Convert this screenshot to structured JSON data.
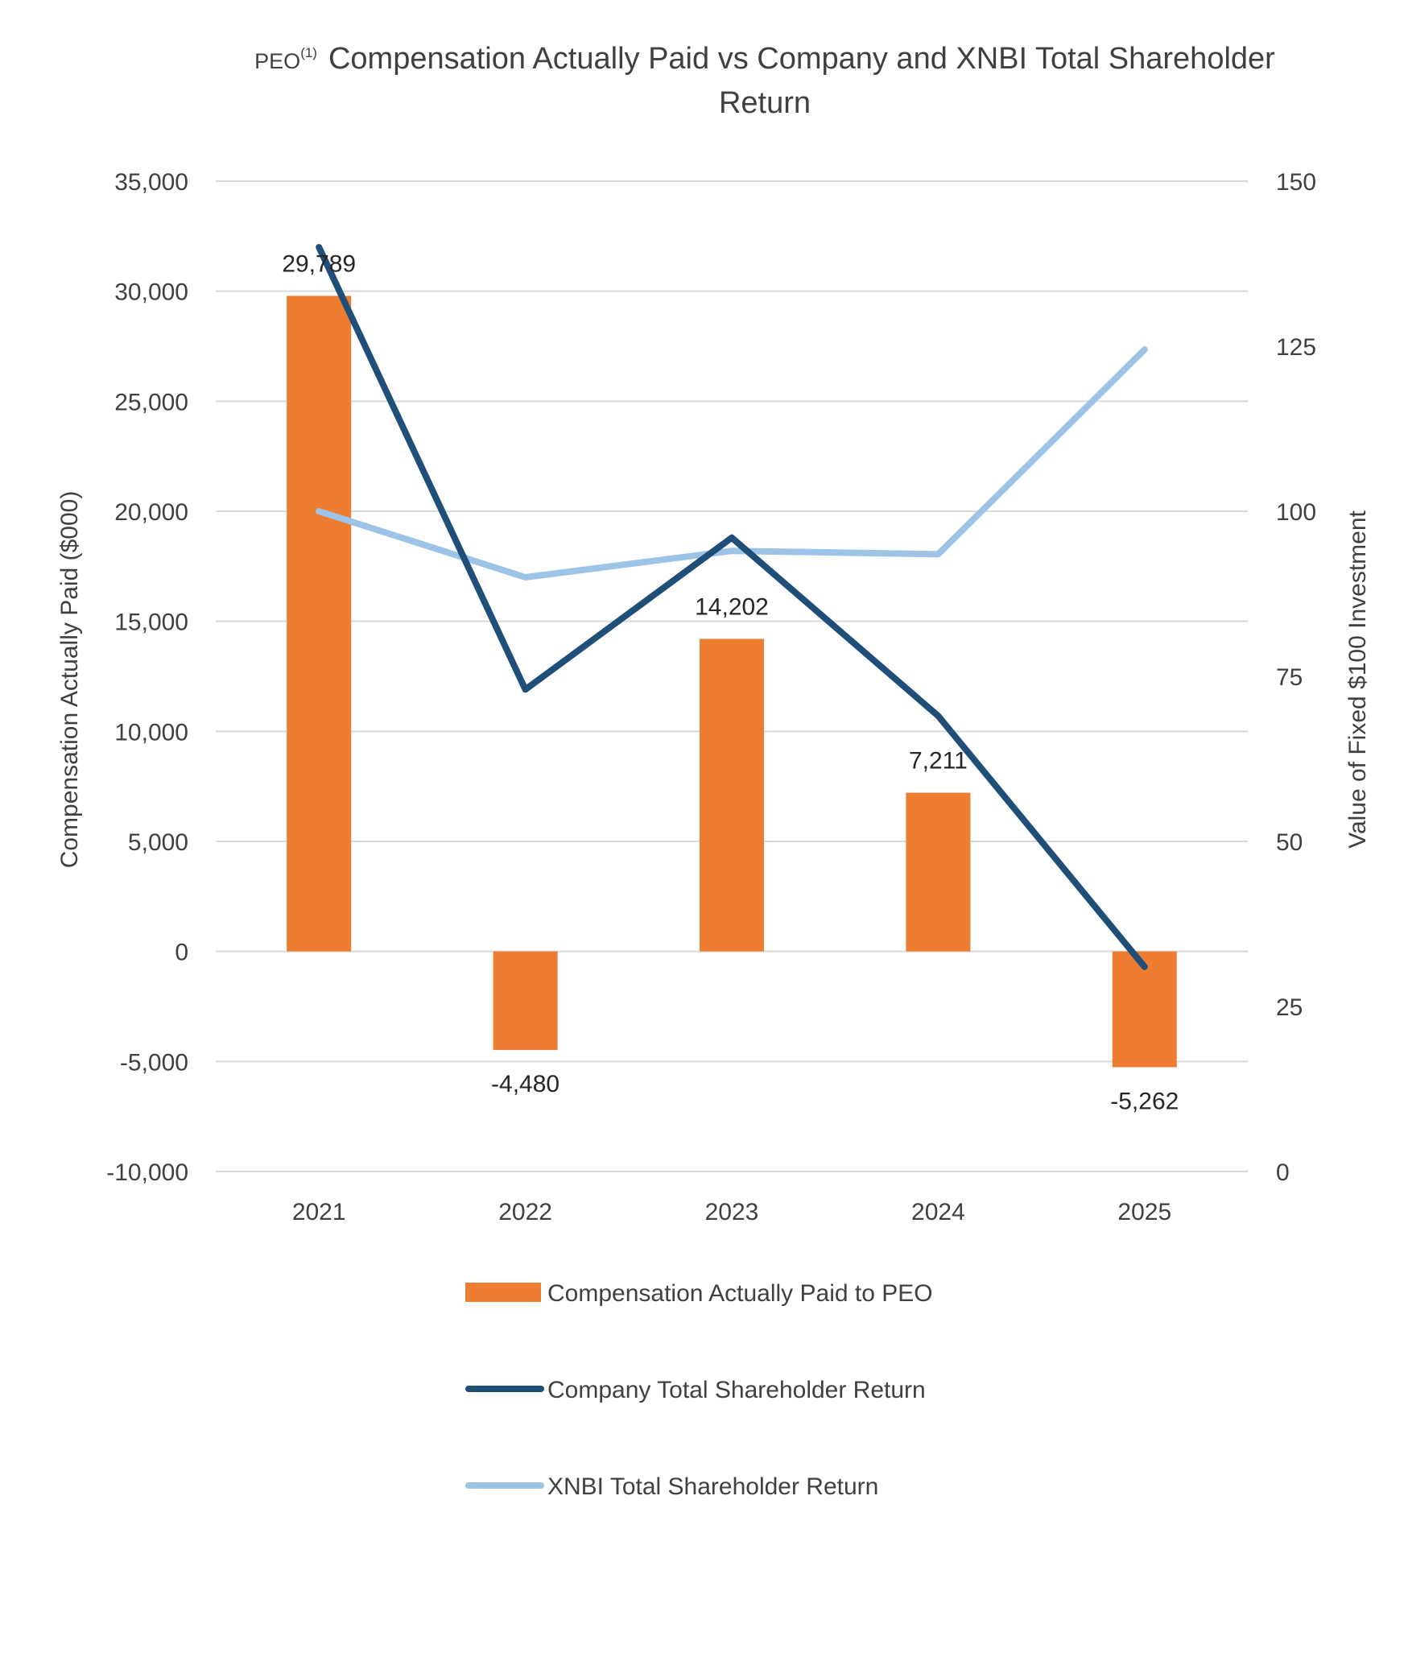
{
  "chart_data": {
    "type": "bar+line",
    "title_prefix": "PEO",
    "title_superscript": "(1)",
    "title_line1": "Compensation Actually Paid vs Company and XNBI Total Shareholder",
    "title_line2": "Return",
    "categories": [
      "2021",
      "2022",
      "2023",
      "2024",
      "2025"
    ],
    "y_left": {
      "label": "Compensation Actually Paid ($000)",
      "min": -10000,
      "max": 35000,
      "step": 5000,
      "tick_labels": [
        "-10,000",
        "-5,000",
        "0",
        "5,000",
        "10,000",
        "15,000",
        "20,000",
        "25,000",
        "30,000",
        "35,000"
      ]
    },
    "y_right": {
      "label": "Value of Fixed $100 Investment",
      "min": 0,
      "max": 150,
      "step": 25,
      "tick_labels": [
        "0",
        "25",
        "50",
        "75",
        "100",
        "125",
        "150"
      ]
    },
    "grid": true,
    "legend_placement": "bottom",
    "series": [
      {
        "name": "Compensation Actually Paid to PEO",
        "kind": "bar",
        "axis": "left",
        "color": "#ED7D31",
        "values": [
          29789,
          -4480,
          14202,
          7211,
          -5262
        ],
        "data_labels": [
          "29,789",
          "-4,480",
          "14,202",
          "7,211",
          "-5,262"
        ]
      },
      {
        "name": "Company Total Shareholder Return",
        "kind": "line",
        "axis": "right",
        "color": "#1F4E79",
        "values": [
          140,
          73,
          96,
          69,
          31
        ]
      },
      {
        "name": "XNBI Total Shareholder Return",
        "kind": "line",
        "axis": "right",
        "color": "#9DC3E6",
        "values": [
          100,
          90,
          94,
          93.5,
          124.5
        ]
      }
    ]
  }
}
